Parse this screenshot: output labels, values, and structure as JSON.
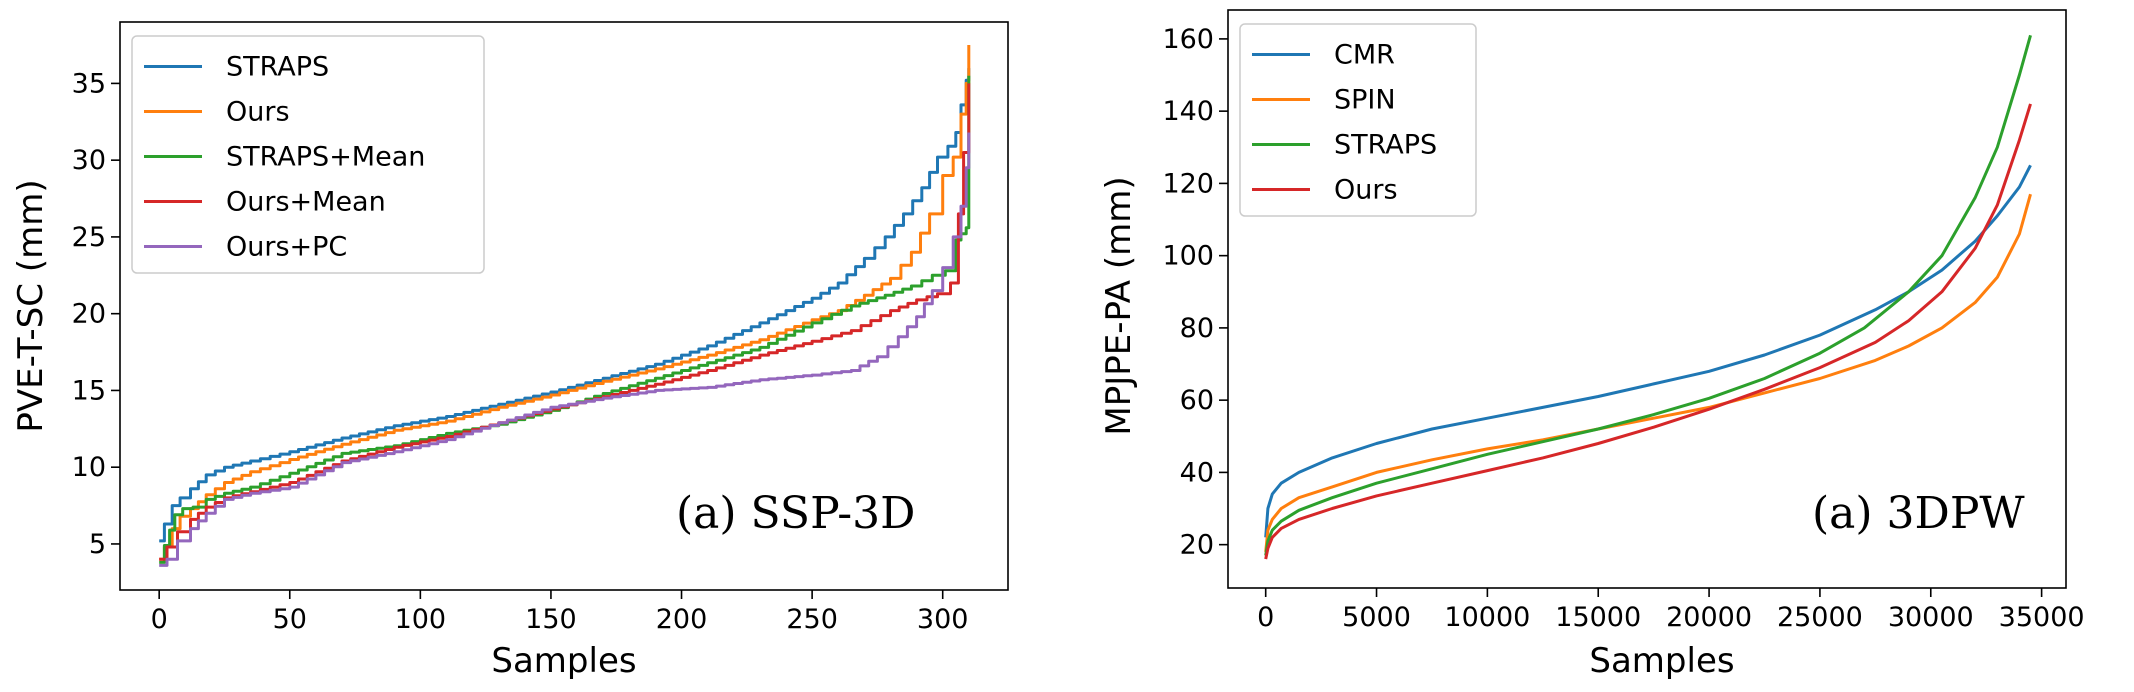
{
  "chart_data": [
    {
      "type": "line",
      "xlabel": "Samples",
      "ylabel": "PVE-T-SC (mm)",
      "annotation": "(a) SSP-3D",
      "xlim": [
        -15,
        325
      ],
      "ylim": [
        2,
        39
      ],
      "xticks": [
        0,
        50,
        100,
        150,
        200,
        250,
        300
      ],
      "yticks": [
        5,
        10,
        15,
        20,
        25,
        30,
        35
      ],
      "legend_position": "upper-left",
      "series": [
        {
          "name": "STRAPS",
          "color": "#1f77b4",
          "step": true,
          "x": [
            0,
            2,
            5,
            8,
            12,
            18,
            25,
            35,
            50,
            70,
            90,
            110,
            130,
            150,
            170,
            190,
            210,
            230,
            250,
            260,
            270,
            278,
            285,
            292,
            298,
            302,
            305,
            307,
            309,
            310
          ],
          "y": [
            5.2,
            6.3,
            7.5,
            8.0,
            8.6,
            9.5,
            10.0,
            10.4,
            11.0,
            11.9,
            12.7,
            13.3,
            14.1,
            14.9,
            15.8,
            16.7,
            17.9,
            19.4,
            21.0,
            22.0,
            23.6,
            25.0,
            26.5,
            28.2,
            30.2,
            30.9,
            31.8,
            33.6,
            35.2,
            36.0
          ]
        },
        {
          "name": "Ours",
          "color": "#ff7f0e",
          "step": true,
          "x": [
            0,
            2,
            5,
            8,
            12,
            18,
            25,
            35,
            50,
            70,
            90,
            110,
            130,
            150,
            170,
            190,
            210,
            230,
            250,
            260,
            270,
            280,
            288,
            295,
            300,
            304,
            307,
            309,
            310
          ],
          "y": [
            4.0,
            4.8,
            6.0,
            6.8,
            7.3,
            8.2,
            9.0,
            9.7,
            10.5,
            11.5,
            12.4,
            13.0,
            13.9,
            14.7,
            15.6,
            16.4,
            17.3,
            18.3,
            19.6,
            20.2,
            21.2,
            22.3,
            24.0,
            26.5,
            29.0,
            30.2,
            33.0,
            35.0,
            37.5
          ]
        },
        {
          "name": "STRAPS+Mean",
          "color": "#2ca02c",
          "step": true,
          "x": [
            0,
            2,
            4,
            6,
            9,
            13,
            18,
            25,
            35,
            50,
            70,
            90,
            110,
            130,
            150,
            170,
            190,
            210,
            230,
            250,
            265,
            278,
            288,
            296,
            301,
            305,
            307,
            309,
            310
          ],
          "y": [
            3.8,
            4.9,
            5.9,
            6.9,
            7.3,
            7.4,
            7.9,
            8.3,
            8.7,
            9.6,
            10.9,
            11.4,
            12.2,
            12.8,
            13.7,
            14.8,
            15.8,
            16.8,
            17.8,
            19.4,
            20.5,
            21.2,
            21.8,
            22.5,
            22.8,
            24.8,
            25.2,
            25.6,
            35.5
          ]
        },
        {
          "name": "Ours+Mean",
          "color": "#d62728",
          "step": true,
          "x": [
            0,
            3,
            7,
            12,
            18,
            25,
            35,
            50,
            70,
            90,
            110,
            130,
            150,
            170,
            190,
            210,
            230,
            250,
            265,
            280,
            290,
            298,
            303,
            306,
            308,
            310
          ],
          "y": [
            4.0,
            4.8,
            5.8,
            6.6,
            7.4,
            8.0,
            8.4,
            9.0,
            10.4,
            11.3,
            12.0,
            12.9,
            13.8,
            14.6,
            15.4,
            16.3,
            17.3,
            18.2,
            18.9,
            20.2,
            20.9,
            21.3,
            22.0,
            26.5,
            30.5,
            35.0
          ]
        },
        {
          "name": "Ours+PC",
          "color": "#9467bd",
          "step": true,
          "x": [
            0,
            3,
            7,
            12,
            18,
            25,
            35,
            50,
            70,
            90,
            110,
            130,
            150,
            170,
            190,
            210,
            230,
            250,
            265,
            275,
            283,
            290,
            296,
            300,
            304,
            307,
            309,
            310
          ],
          "y": [
            3.6,
            4.0,
            5.2,
            6.0,
            7.0,
            7.9,
            8.3,
            8.7,
            10.3,
            11.0,
            11.8,
            12.9,
            13.9,
            14.5,
            15.0,
            15.2,
            15.7,
            16.0,
            16.3,
            17.2,
            18.5,
            19.8,
            21.5,
            23.0,
            25.0,
            27.0,
            29.5,
            31.8
          ]
        }
      ]
    },
    {
      "type": "line",
      "xlabel": "Samples",
      "ylabel": "MPJPE-PA (mm)",
      "annotation": "(a) 3DPW",
      "xlim": [
        -1700,
        36100
      ],
      "ylim": [
        8,
        168
      ],
      "xticks": [
        0,
        5000,
        10000,
        15000,
        20000,
        25000,
        30000,
        35000
      ],
      "yticks": [
        20,
        40,
        60,
        80,
        100,
        120,
        140,
        160
      ],
      "legend_position": "upper-left",
      "series": [
        {
          "name": "CMR",
          "color": "#1f77b4",
          "step": false,
          "x": [
            0,
            100,
            300,
            700,
            1500,
            3000,
            5000,
            7500,
            10000,
            12500,
            15000,
            17500,
            20000,
            22500,
            25000,
            27500,
            29000,
            30500,
            32000,
            33000,
            34000,
            34500
          ],
          "y": [
            22,
            30,
            34,
            37,
            40,
            44,
            48,
            52,
            55,
            58,
            61,
            64.5,
            68,
            72.5,
            78,
            85,
            90,
            96,
            104,
            111,
            119,
            125
          ]
        },
        {
          "name": "SPIN",
          "color": "#ff7f0e",
          "step": false,
          "x": [
            0,
            100,
            300,
            700,
            1500,
            3000,
            5000,
            7500,
            10000,
            12500,
            15000,
            17500,
            20000,
            22500,
            25000,
            27500,
            29000,
            30500,
            32000,
            33000,
            34000,
            34500
          ],
          "y": [
            18,
            24,
            27,
            30,
            33,
            36,
            40,
            43.5,
            46.5,
            49,
            52,
            55,
            58,
            62,
            66,
            71,
            75,
            80,
            87,
            94,
            106,
            117
          ]
        },
        {
          "name": "STRAPS",
          "color": "#2ca02c",
          "step": false,
          "x": [
            0,
            100,
            300,
            700,
            1500,
            3000,
            5000,
            7500,
            10000,
            12500,
            15000,
            17500,
            20000,
            22500,
            25000,
            27000,
            29000,
            30500,
            32000,
            33000,
            34000,
            34500
          ],
          "y": [
            17,
            21,
            24,
            26.5,
            29.5,
            33,
            37,
            41,
            45,
            48.5,
            52,
            56,
            60.5,
            66,
            73,
            80,
            90,
            100,
            116,
            130,
            150,
            161
          ]
        },
        {
          "name": "Ours",
          "color": "#d62728",
          "step": false,
          "x": [
            0,
            100,
            300,
            700,
            1500,
            3000,
            5000,
            7500,
            10000,
            12500,
            15000,
            17500,
            20000,
            22500,
            25000,
            27500,
            29000,
            30500,
            32000,
            33000,
            34000,
            34500
          ],
          "y": [
            16,
            19,
            22,
            24.5,
            27,
            30,
            33.5,
            37,
            40.5,
            44,
            48,
            52.5,
            57.5,
            63,
            69,
            76,
            82,
            90,
            102,
            114,
            132,
            142
          ]
        }
      ]
    }
  ]
}
